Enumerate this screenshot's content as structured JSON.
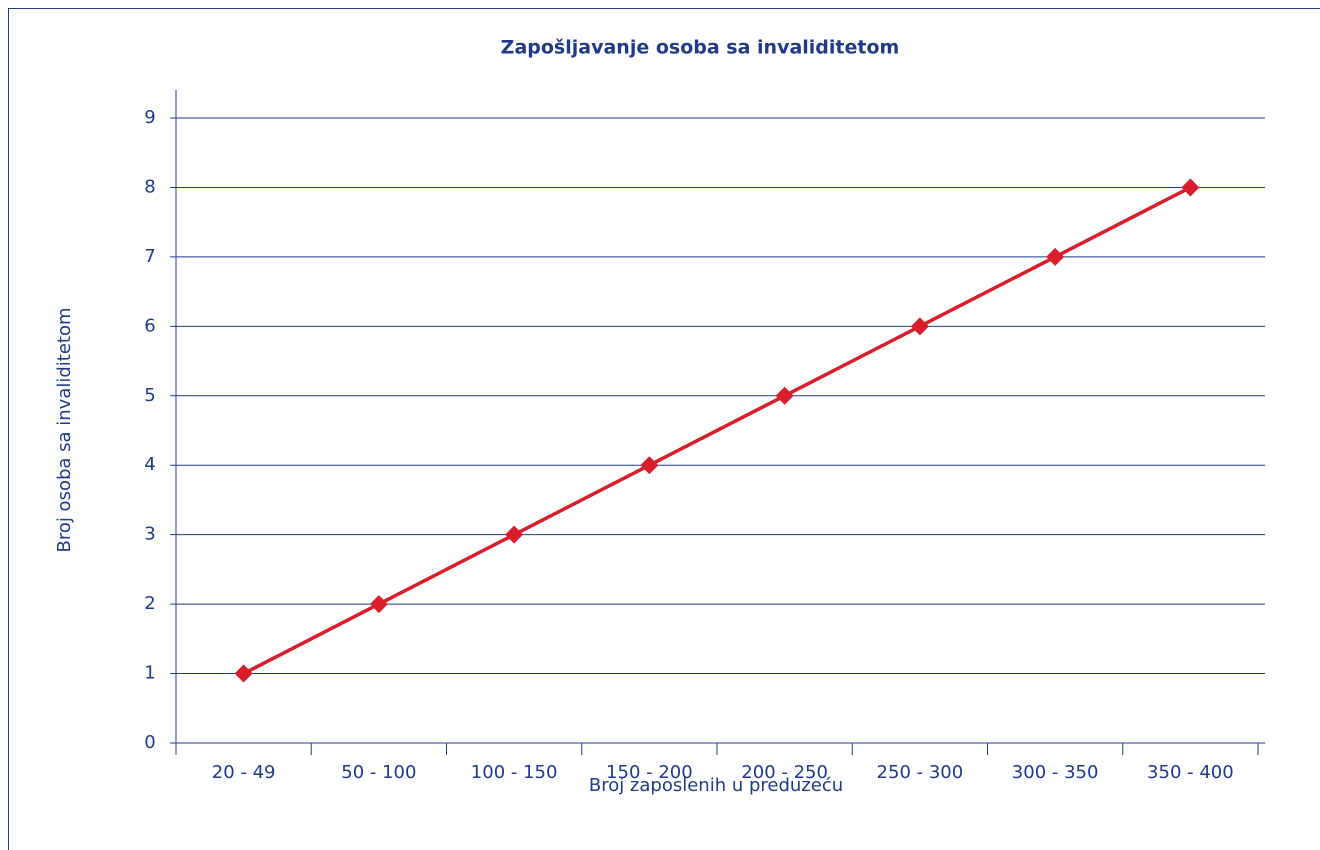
{
  "chart_data": {
    "type": "line",
    "title": "Zapošljavanje osoba sa invaliditetom",
    "x_label": "Broj zaposlenih u preduzeću",
    "y_label": "Broj osoba sa invaliditetom",
    "categories": [
      "20 - 49",
      "50 - 100",
      "100 - 150",
      "150 - 200",
      "200 - 250",
      "250 - 300",
      "300 - 350",
      "350 - 400"
    ],
    "series": [
      {
        "name": "Broj osoba sa invaliditetom",
        "color": "#d81e2a",
        "values": [
          1,
          2,
          3,
          4,
          5,
          6,
          7,
          8
        ]
      }
    ],
    "ylim": [
      0,
      9
    ],
    "yticks": [
      0,
      1,
      2,
      3,
      4,
      5,
      6,
      7,
      8,
      9
    ],
    "grid": true,
    "legend": false
  }
}
